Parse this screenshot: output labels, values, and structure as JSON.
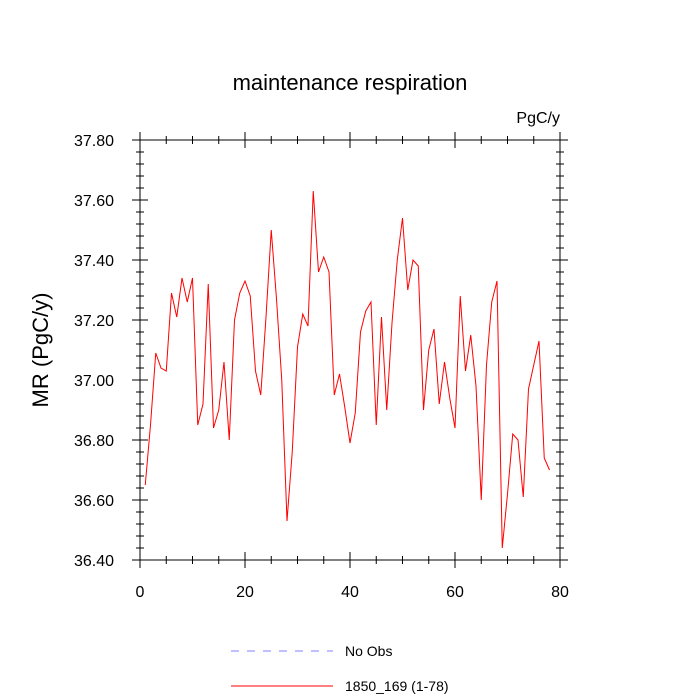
{
  "chart_data": {
    "type": "line",
    "title": "maintenance respiration",
    "units": "PgC/y",
    "ylabel": "MR  (PgC/y)",
    "xlabel": "",
    "xlim": [
      0,
      80
    ],
    "ylim": [
      36.4,
      37.8
    ],
    "xticks": [
      0,
      20,
      40,
      60,
      80
    ],
    "xtick_labels": [
      "0",
      "20",
      "40",
      "60",
      "80"
    ],
    "yticks": [
      36.4,
      36.6,
      36.8,
      37.0,
      37.2,
      37.4,
      37.6,
      37.8
    ],
    "ytick_labels": [
      "36.40",
      "36.60",
      "36.80",
      "37.00",
      "37.20",
      "37.40",
      "37.60",
      "37.80"
    ],
    "legend": [
      {
        "label": "No Obs",
        "color": "#8080ff",
        "style": "dashed"
      },
      {
        "label": "1850_169 (1-78)",
        "color": "#ff0000",
        "style": "solid"
      }
    ],
    "series": [
      {
        "name": "1850_169 (1-78)",
        "color": "#ff0000",
        "x": [
          1,
          2,
          3,
          4,
          5,
          6,
          7,
          8,
          9,
          10,
          11,
          12,
          13,
          14,
          15,
          16,
          17,
          18,
          19,
          20,
          21,
          22,
          23,
          24,
          25,
          26,
          27,
          28,
          29,
          30,
          31,
          32,
          33,
          34,
          35,
          36,
          37,
          38,
          39,
          40,
          41,
          42,
          43,
          44,
          45,
          46,
          47,
          48,
          49,
          50,
          51,
          52,
          53,
          54,
          55,
          56,
          57,
          58,
          59,
          60,
          61,
          62,
          63,
          64,
          65,
          66,
          67,
          68,
          69,
          70,
          71,
          72,
          73,
          74,
          75,
          76,
          77,
          78
        ],
        "values": [
          36.65,
          36.85,
          37.09,
          37.04,
          37.03,
          37.29,
          37.21,
          37.34,
          37.26,
          37.34,
          36.85,
          36.92,
          37.32,
          36.84,
          36.9,
          37.06,
          36.8,
          37.2,
          37.29,
          37.33,
          37.28,
          37.03,
          36.95,
          37.21,
          37.5,
          37.27,
          37.0,
          36.53,
          36.76,
          37.11,
          37.22,
          37.18,
          37.63,
          37.36,
          37.41,
          37.36,
          36.95,
          37.02,
          36.91,
          36.79,
          36.89,
          37.16,
          37.23,
          37.26,
          36.85,
          37.21,
          36.9,
          37.19,
          37.4,
          37.54,
          37.3,
          37.4,
          37.38,
          36.9,
          37.1,
          37.17,
          36.92,
          37.06,
          36.94,
          36.84,
          37.28,
          37.03,
          37.15,
          36.98,
          36.6,
          37.05,
          37.26,
          37.33,
          36.44,
          36.62,
          36.82,
          36.8,
          36.61,
          36.97,
          37.05,
          37.13,
          36.74,
          36.7
        ]
      }
    ]
  }
}
